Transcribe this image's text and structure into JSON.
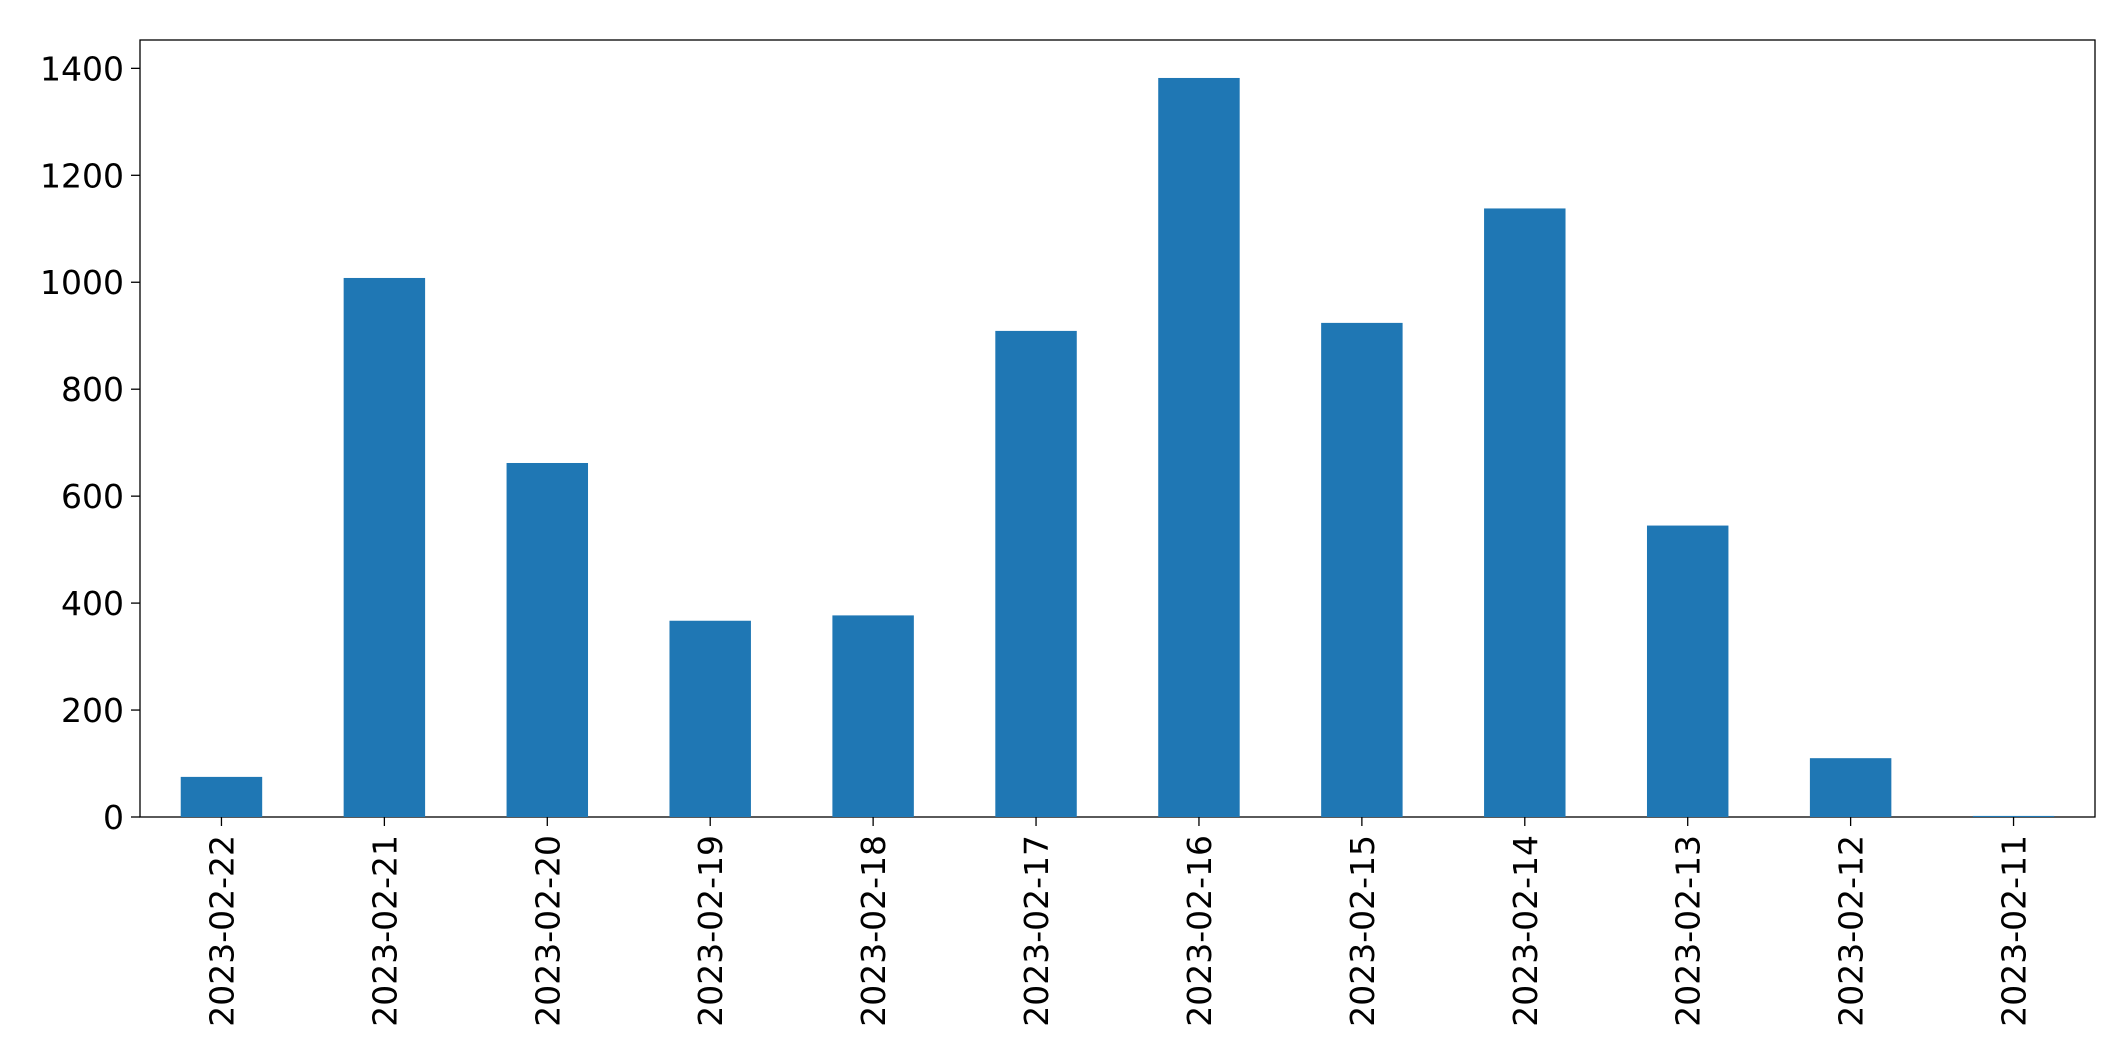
{
  "chart_data": {
    "type": "bar",
    "categories": [
      "2023-02-22",
      "2023-02-21",
      "2023-02-20",
      "2023-02-19",
      "2023-02-18",
      "2023-02-17",
      "2023-02-16",
      "2023-02-15",
      "2023-02-14",
      "2023-02-13",
      "2023-02-12",
      "2023-02-11"
    ],
    "values": [
      75,
      1008,
      662,
      367,
      377,
      909,
      1382,
      924,
      1138,
      545,
      110,
      2
    ],
    "color": "#1f77b4",
    "ylim": [
      0,
      1453
    ],
    "yticks": [
      0,
      200,
      400,
      600,
      800,
      1000,
      1200,
      1400
    ],
    "grid": false
  }
}
